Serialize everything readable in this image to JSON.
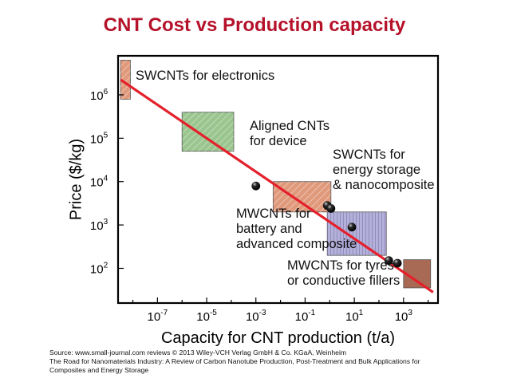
{
  "slide": {
    "title": "CNT Cost vs Production capacity"
  },
  "colors": {
    "title": "#b5122a",
    "fit_line": "#e4202b",
    "green_box": "#9ac58e",
    "orange_box": "#e0997b",
    "purple_box": "#b3b1d9",
    "brown_box": "#a86a55"
  },
  "chart_data": {
    "type": "scatter",
    "title": "",
    "xlabel": "Capacity for CNT production (t/a)",
    "ylabel": "Price ($/kg)",
    "x_scale": "log10",
    "y_scale": "log10",
    "xlim_log10": [
      -8.6,
      4.4
    ],
    "ylim_log10": [
      1.2,
      6.9
    ],
    "x_tick_labels": [
      {
        "mantissa": "10",
        "exp": "-7",
        "log10": -7
      },
      {
        "mantissa": "10",
        "exp": "-5",
        "log10": -5
      },
      {
        "mantissa": "10",
        "exp": "-3",
        "log10": -3
      },
      {
        "mantissa": "10",
        "exp": "-1",
        "log10": -1
      },
      {
        "mantissa": "10",
        "exp": "1",
        "log10": 1
      },
      {
        "mantissa": "10",
        "exp": "3",
        "log10": 3
      }
    ],
    "y_tick_labels": [
      {
        "mantissa": "10",
        "exp": "2",
        "log10": 2
      },
      {
        "mantissa": "10",
        "exp": "3",
        "log10": 3
      },
      {
        "mantissa": "10",
        "exp": "4",
        "log10": 4
      },
      {
        "mantissa": "10",
        "exp": "5",
        "log10": 5
      },
      {
        "mantissa": "10",
        "exp": "6",
        "log10": 6
      }
    ],
    "trend_line": {
      "x_log10": [
        -8.5,
        4.2
      ],
      "y_log10": [
        6.35,
        1.45
      ]
    },
    "points": [
      {
        "x_log10": -3.0,
        "y_log10": 3.9
      },
      {
        "x_log10": -0.1,
        "y_log10": 3.45
      },
      {
        "x_log10": 0.05,
        "y_log10": 3.38
      },
      {
        "x_log10": 0.9,
        "y_log10": 2.95
      },
      {
        "x_log10": 2.4,
        "y_log10": 2.18
      },
      {
        "x_log10": 2.75,
        "y_log10": 2.12
      }
    ],
    "regions": [
      {
        "label": "SWCNTs for electronics",
        "fill": "orange",
        "x_log10": [
          -8.5,
          -8.1
        ],
        "y_log10": [
          5.9,
          6.8
        ]
      },
      {
        "label": "Aligned CNTs for device",
        "fill": "green",
        "x_log10": [
          -6.0,
          -3.9
        ],
        "y_log10": [
          4.7,
          5.6
        ]
      },
      {
        "label": "SWCNTs for energy storage & nanocomposite",
        "fill": "orange",
        "x_log10": [
          -2.3,
          0.05
        ],
        "y_log10": [
          3.3,
          4.0
        ]
      },
      {
        "label": "MWCNTs for battery and advanced composite",
        "fill": "purple",
        "x_log10": [
          -0.1,
          2.3
        ],
        "y_log10": [
          2.3,
          3.3
        ]
      },
      {
        "label": "MWCNTs for tyres or conductive fillers",
        "fill": "brown",
        "x_log10": [
          3.0,
          4.1
        ],
        "y_log10": [
          1.55,
          2.2
        ]
      }
    ],
    "annotations": [
      {
        "lines": [
          "SWCNTs for electronics"
        ]
      },
      {
        "lines": [
          "Aligned CNTs",
          "for device"
        ]
      },
      {
        "lines": [
          "SWCNTs for",
          "energy storage",
          "& nanocomposite"
        ]
      },
      {
        "lines": [
          "MWCNTs for",
          "battery and",
          "advanced composite"
        ]
      },
      {
        "lines": [
          "MWCNTs for tyres",
          "or conductive fillers"
        ]
      }
    ]
  },
  "source": {
    "line1": "Source: www.small-journal.com reviews © 2013 Wiley-VCH Verlag GmbH & Co. KGaA, Weinheim",
    "line2": "The Road for Nanomaterials Industry: A  Review of Carbon Nanotube Production, Post-Treatment and Bulk Applications for",
    "line3": "Composites and Energy Storage"
  }
}
